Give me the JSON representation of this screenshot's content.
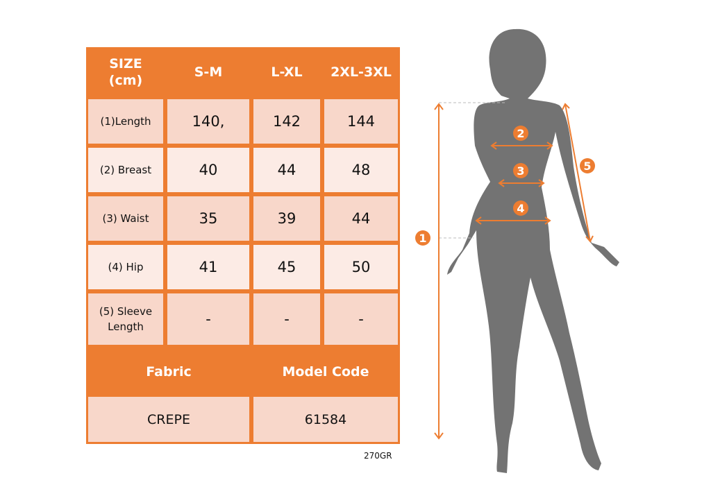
{
  "table": {
    "header": [
      "SIZE\n(cm)",
      "S-M",
      "L-XL",
      "2XL-3XL"
    ],
    "header_label_line1": "SIZE",
    "header_label_line2": "(cm)",
    "rows": [
      {
        "label": "(1)Length",
        "values": [
          "140,",
          "142",
          "144"
        ]
      },
      {
        "label": "(2) Breast",
        "values": [
          "40",
          "44",
          "48"
        ]
      },
      {
        "label": "(3) Waist",
        "values": [
          "35",
          "39",
          "44"
        ]
      },
      {
        "label": "(4) Hip",
        "values": [
          "41",
          "45",
          "50"
        ]
      },
      {
        "label": "(5) Sleeve Length",
        "label_line1": "(5) Sleeve",
        "label_line2": "Length",
        "values": [
          "-",
          "-",
          "-"
        ]
      }
    ],
    "fabric_header": "Fabric",
    "model_code_header": "Model Code",
    "fabric_value": "CREPE",
    "model_code_value": "61584"
  },
  "weight_note": "270GR",
  "figure": {
    "badges": [
      "1",
      "2",
      "3",
      "4",
      "5"
    ]
  },
  "colors": {
    "accent": "#ED7D31",
    "row_dark": "#F8D7CA",
    "row_light": "#FCEBE5",
    "silhouette": "#737373"
  }
}
